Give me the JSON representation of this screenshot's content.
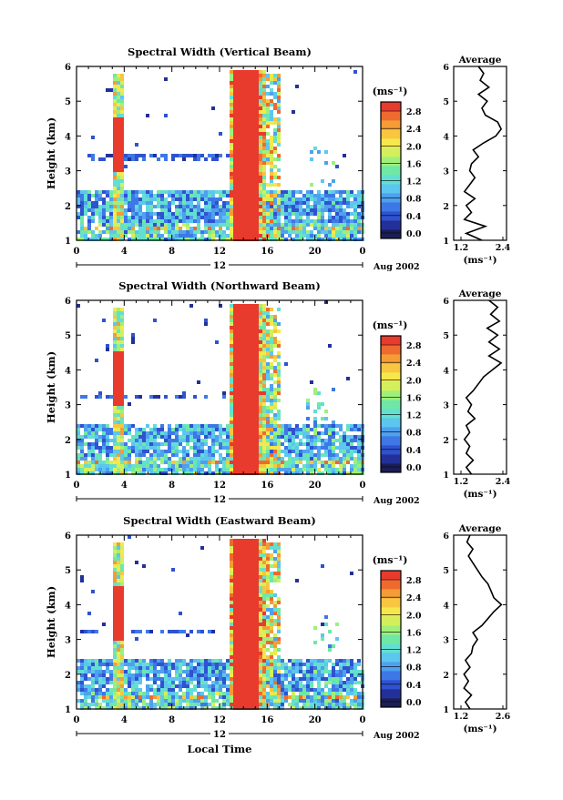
{
  "colors": {
    "scale": [
      "#1b1e55",
      "#23309a",
      "#2f52cf",
      "#3d78e6",
      "#4fa0ee",
      "#5cc6ee",
      "#63dfd2",
      "#6fe8a6",
      "#9ff07a",
      "#d3f05c",
      "#f6e84c",
      "#f8c640",
      "#f49c35",
      "#ee6a2f",
      "#e83a2d"
    ]
  },
  "panels": [
    {
      "title": "Spectral Width (Vertical Beam)",
      "ylabel": "Height (km)",
      "unit_label": "(ms⁻¹)",
      "colorbar_ticks": [
        "0.0",
        "0.4",
        "0.8",
        "1.2",
        "1.6",
        "2.0",
        "2.4",
        "2.8"
      ],
      "xticks": [
        "0",
        "4",
        "8",
        "12",
        "16",
        "20",
        "0"
      ],
      "yticks": [
        "1",
        "2",
        "3",
        "4",
        "5",
        "6"
      ],
      "date_day": "12",
      "date_label": "Aug 2002",
      "avg_title": "Average",
      "avg_unit": "(ms⁻¹)",
      "avg_xticks": [
        "1.2",
        "2.4"
      ]
    },
    {
      "title": "Spectral Width (Northward Beam)",
      "ylabel": "Height (km)",
      "unit_label": "(ms⁻¹)",
      "colorbar_ticks": [
        "0.0",
        "0.4",
        "0.8",
        "1.2",
        "1.6",
        "2.0",
        "2.4",
        "2.8"
      ],
      "xticks": [
        "0",
        "4",
        "8",
        "12",
        "16",
        "20",
        "0"
      ],
      "yticks": [
        "1",
        "2",
        "3",
        "4",
        "5",
        "6"
      ],
      "date_day": "12",
      "date_label": "Aug 2002",
      "avg_title": "Average",
      "avg_unit": "(ms⁻¹)",
      "avg_xticks": [
        "1.2",
        "2.4"
      ]
    },
    {
      "title": "Spectral Width (Eastward Beam)",
      "ylabel": "Height (km)",
      "unit_label": "(ms⁻¹)",
      "colorbar_ticks": [
        "0.0",
        "0.4",
        "0.8",
        "1.2",
        "1.6",
        "2.0",
        "2.4",
        "2.8"
      ],
      "xticks": [
        "0",
        "4",
        "8",
        "12",
        "16",
        "20",
        "0"
      ],
      "yticks": [
        "1",
        "2",
        "3",
        "4",
        "5",
        "6"
      ],
      "date_day": "12",
      "date_label": "Aug 2002",
      "avg_title": "Average",
      "avg_unit": "(ms⁻¹)",
      "avg_xticks": [
        "1.2",
        "2.6"
      ],
      "xlabel": "Local Time"
    }
  ],
  "chart_data": [
    {
      "type": "heatmap",
      "title": "Spectral Width (Vertical Beam)",
      "xlabel": "",
      "ylabel": "Height (km)",
      "x_range_hours": [
        0,
        24
      ],
      "ylim": [
        1,
        6
      ],
      "colorbar": {
        "label": "(ms⁻¹)",
        "range": [
          0.0,
          3.0
        ]
      },
      "profile": {
        "title": "Average",
        "xlabel": "(ms⁻¹)",
        "xlim": [
          1.2,
          2.4
        ],
        "height": [
          1.0,
          1.2,
          1.4,
          1.6,
          1.8,
          2.0,
          2.2,
          2.4,
          2.6,
          2.8,
          3.0,
          3.2,
          3.4,
          3.6,
          3.8,
          4.0,
          4.2,
          4.4,
          4.6,
          4.8,
          5.0,
          5.2,
          5.4,
          5.6,
          5.8,
          6.0
        ],
        "value": [
          1.8,
          1.35,
          1.9,
          1.3,
          1.5,
          1.35,
          1.6,
          1.3,
          1.45,
          1.6,
          1.45,
          1.5,
          1.7,
          1.55,
          1.85,
          2.2,
          2.35,
          2.25,
          1.9,
          1.8,
          1.95,
          1.7,
          2.0,
          1.75,
          1.85,
          1.7
        ]
      }
    },
    {
      "type": "heatmap",
      "title": "Spectral Width (Northward Beam)",
      "xlabel": "",
      "ylabel": "Height (km)",
      "x_range_hours": [
        0,
        24
      ],
      "ylim": [
        1,
        6
      ],
      "colorbar": {
        "label": "(ms⁻¹)",
        "range": [
          0.0,
          3.0
        ]
      },
      "profile": {
        "title": "Average",
        "xlabel": "(ms⁻¹)",
        "xlim": [
          1.2,
          2.4
        ],
        "height": [
          1.0,
          1.2,
          1.4,
          1.6,
          1.8,
          2.0,
          2.2,
          2.4,
          2.6,
          2.8,
          3.0,
          3.2,
          3.4,
          3.6,
          3.8,
          4.0,
          4.2,
          4.4,
          4.6,
          4.8,
          5.0,
          5.2,
          5.4,
          5.6,
          5.8,
          6.0
        ],
        "value": [
          1.5,
          1.35,
          1.55,
          1.35,
          1.45,
          1.3,
          1.45,
          1.35,
          1.6,
          1.4,
          1.5,
          1.35,
          1.55,
          1.7,
          1.85,
          2.1,
          2.35,
          2.0,
          2.3,
          2.0,
          2.25,
          1.95,
          2.3,
          2.05,
          2.25,
          2.0
        ]
      }
    },
    {
      "type": "heatmap",
      "title": "Spectral Width (Eastward Beam)",
      "xlabel": "Local Time",
      "ylabel": "Height (km)",
      "x_range_hours": [
        0,
        24
      ],
      "ylim": [
        1,
        6
      ],
      "colorbar": {
        "label": "(ms⁻¹)",
        "range": [
          0.0,
          3.0
        ]
      },
      "profile": {
        "title": "Average",
        "xlabel": "(ms⁻¹)",
        "xlim": [
          1.2,
          2.6
        ],
        "height": [
          1.0,
          1.2,
          1.4,
          1.6,
          1.8,
          2.0,
          2.2,
          2.4,
          2.6,
          2.8,
          3.0,
          3.2,
          3.4,
          3.6,
          3.8,
          4.0,
          4.2,
          4.4,
          4.6,
          4.8,
          5.0,
          5.2,
          5.4,
          5.6,
          5.8,
          6.0
        ],
        "value": [
          1.5,
          1.35,
          1.55,
          1.3,
          1.45,
          1.3,
          1.5,
          1.35,
          1.55,
          1.6,
          1.75,
          1.6,
          1.9,
          2.1,
          2.3,
          2.55,
          2.3,
          2.2,
          2.1,
          1.9,
          1.75,
          1.6,
          1.45,
          1.6,
          1.4,
          1.5
        ]
      }
    }
  ]
}
